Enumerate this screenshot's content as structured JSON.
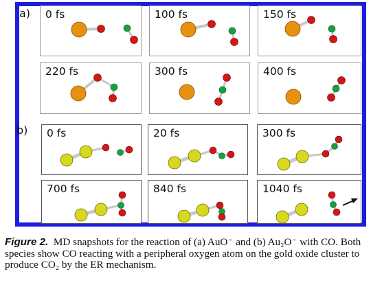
{
  "figure": {
    "panel_a_label": "a)",
    "panel_b_label": "b)",
    "panels_a": [
      {
        "time": "0 fs"
      },
      {
        "time": "100 fs"
      },
      {
        "time": "150 fs"
      },
      {
        "time": "220 fs"
      },
      {
        "time": "300 fs"
      },
      {
        "time": "400 fs"
      }
    ],
    "panels_b": [
      {
        "time": "0 fs"
      },
      {
        "time": "20 fs"
      },
      {
        "time": "300 fs"
      },
      {
        "time": "700 fs"
      },
      {
        "time": "840 fs"
      },
      {
        "time": "1040 fs"
      }
    ]
  },
  "colors": {
    "frame": "#1d1ce0",
    "gold_atom": "#e8900f",
    "sulfur_like_atom": "#d8d820",
    "oxygen_atom": "#d01818",
    "carbon_atom": "#18a040",
    "bond": "#c8c8c8"
  },
  "caption": {
    "label": "Figure 2.",
    "text": "MD snapshots for the reaction of (a) AuO⁻ and (b) Au₂O⁻ with CO. Both species show CO reacting with a peripheral oxygen atom on the gold oxide cluster to produce CO₂ by the ER mechanism."
  }
}
